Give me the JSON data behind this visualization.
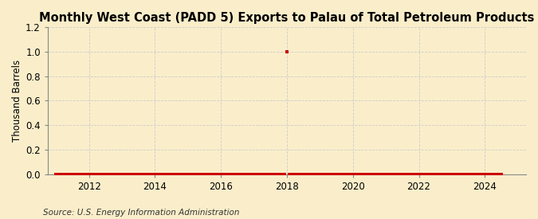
{
  "title": "Monthly West Coast (PADD 5) Exports to Palau of Total Petroleum Products",
  "ylabel": "Thousand Barrels",
  "source": "Source: U.S. Energy Information Administration",
  "background_color": "#faeeca",
  "ylim": [
    0,
    1.2
  ],
  "yticks": [
    0.0,
    0.2,
    0.4,
    0.6,
    0.8,
    1.0,
    1.2
  ],
  "xlim_start": 2010.75,
  "xlim_end": 2025.25,
  "xticks": [
    2012,
    2014,
    2016,
    2018,
    2020,
    2022,
    2024
  ],
  "marker_color": "#cc0000",
  "markersize": 3,
  "data_points": [
    [
      2011.0,
      0.0
    ],
    [
      2011.083,
      0.0
    ],
    [
      2011.167,
      0.0
    ],
    [
      2011.25,
      0.0
    ],
    [
      2011.333,
      0.0
    ],
    [
      2011.417,
      0.0
    ],
    [
      2011.5,
      0.0
    ],
    [
      2011.583,
      0.0
    ],
    [
      2011.667,
      0.0
    ],
    [
      2011.75,
      0.0
    ],
    [
      2011.833,
      0.0
    ],
    [
      2011.917,
      0.0
    ],
    [
      2012.0,
      0.0
    ],
    [
      2012.083,
      0.0
    ],
    [
      2012.167,
      0.0
    ],
    [
      2012.25,
      0.0
    ],
    [
      2012.333,
      0.0
    ],
    [
      2012.417,
      0.0
    ],
    [
      2012.5,
      0.0
    ],
    [
      2012.583,
      0.0
    ],
    [
      2012.667,
      0.0
    ],
    [
      2012.75,
      0.0
    ],
    [
      2012.833,
      0.0
    ],
    [
      2012.917,
      0.0
    ],
    [
      2013.0,
      0.0
    ],
    [
      2013.083,
      0.0
    ],
    [
      2013.167,
      0.0
    ],
    [
      2013.25,
      0.0
    ],
    [
      2013.333,
      0.0
    ],
    [
      2013.417,
      0.0
    ],
    [
      2013.5,
      0.0
    ],
    [
      2013.583,
      0.0
    ],
    [
      2013.667,
      0.0
    ],
    [
      2013.75,
      0.0
    ],
    [
      2013.833,
      0.0
    ],
    [
      2013.917,
      0.0
    ],
    [
      2014.0,
      0.0
    ],
    [
      2014.083,
      0.0
    ],
    [
      2014.167,
      0.0
    ],
    [
      2014.25,
      0.0
    ],
    [
      2014.333,
      0.0
    ],
    [
      2014.417,
      0.0
    ],
    [
      2014.5,
      0.0
    ],
    [
      2014.583,
      0.0
    ],
    [
      2014.667,
      0.0
    ],
    [
      2014.75,
      0.0
    ],
    [
      2014.833,
      0.0
    ],
    [
      2014.917,
      0.0
    ],
    [
      2015.0,
      0.0
    ],
    [
      2015.083,
      0.0
    ],
    [
      2015.167,
      0.0
    ],
    [
      2015.25,
      0.0
    ],
    [
      2015.333,
      0.0
    ],
    [
      2015.417,
      0.0
    ],
    [
      2015.5,
      0.0
    ],
    [
      2015.583,
      0.0
    ],
    [
      2015.667,
      0.0
    ],
    [
      2015.75,
      0.0
    ],
    [
      2015.833,
      0.0
    ],
    [
      2015.917,
      0.0
    ],
    [
      2016.0,
      0.0
    ],
    [
      2016.083,
      0.0
    ],
    [
      2016.167,
      0.0
    ],
    [
      2016.25,
      0.0
    ],
    [
      2016.333,
      0.0
    ],
    [
      2016.417,
      0.0
    ],
    [
      2016.5,
      0.0
    ],
    [
      2016.583,
      0.0
    ],
    [
      2016.667,
      0.0
    ],
    [
      2016.75,
      0.0
    ],
    [
      2016.833,
      0.0
    ],
    [
      2016.917,
      0.0
    ],
    [
      2017.0,
      0.0
    ],
    [
      2017.083,
      0.0
    ],
    [
      2017.167,
      0.0
    ],
    [
      2017.25,
      0.0
    ],
    [
      2017.333,
      0.0
    ],
    [
      2017.417,
      0.0
    ],
    [
      2017.5,
      0.0
    ],
    [
      2017.583,
      0.0
    ],
    [
      2017.667,
      0.0
    ],
    [
      2017.75,
      0.0
    ],
    [
      2017.833,
      0.0
    ],
    [
      2017.917,
      0.0
    ],
    [
      2018.0,
      1.0
    ],
    [
      2018.083,
      0.0
    ],
    [
      2018.167,
      0.0
    ],
    [
      2018.25,
      0.0
    ],
    [
      2018.333,
      0.0
    ],
    [
      2018.417,
      0.0
    ],
    [
      2018.5,
      0.0
    ],
    [
      2018.583,
      0.0
    ],
    [
      2018.667,
      0.0
    ],
    [
      2018.75,
      0.0
    ],
    [
      2018.833,
      0.0
    ],
    [
      2018.917,
      0.0
    ],
    [
      2019.0,
      0.0
    ],
    [
      2019.083,
      0.0
    ],
    [
      2019.167,
      0.0
    ],
    [
      2019.25,
      0.0
    ],
    [
      2019.333,
      0.0
    ],
    [
      2019.417,
      0.0
    ],
    [
      2019.5,
      0.0
    ],
    [
      2019.583,
      0.0
    ],
    [
      2019.667,
      0.0
    ],
    [
      2019.75,
      0.0
    ],
    [
      2019.833,
      0.0
    ],
    [
      2019.917,
      0.0
    ],
    [
      2020.0,
      0.0
    ],
    [
      2020.083,
      0.0
    ],
    [
      2020.167,
      0.0
    ],
    [
      2020.25,
      0.0
    ],
    [
      2020.333,
      0.0
    ],
    [
      2020.417,
      0.0
    ],
    [
      2020.5,
      0.0
    ],
    [
      2020.583,
      0.0
    ],
    [
      2020.667,
      0.0
    ],
    [
      2020.75,
      0.0
    ],
    [
      2020.833,
      0.0
    ],
    [
      2020.917,
      0.0
    ],
    [
      2021.0,
      0.0
    ],
    [
      2021.083,
      0.0
    ],
    [
      2021.167,
      0.0
    ],
    [
      2021.25,
      0.0
    ],
    [
      2021.333,
      0.0
    ],
    [
      2021.417,
      0.0
    ],
    [
      2021.5,
      0.0
    ],
    [
      2021.583,
      0.0
    ],
    [
      2021.667,
      0.0
    ],
    [
      2021.75,
      0.0
    ],
    [
      2021.833,
      0.0
    ],
    [
      2021.917,
      0.0
    ],
    [
      2022.0,
      0.0
    ],
    [
      2022.083,
      0.0
    ],
    [
      2022.167,
      0.0
    ],
    [
      2022.25,
      0.0
    ],
    [
      2022.333,
      0.0
    ],
    [
      2022.417,
      0.0
    ],
    [
      2022.5,
      0.0
    ],
    [
      2022.583,
      0.0
    ],
    [
      2022.667,
      0.0
    ],
    [
      2022.75,
      0.0
    ],
    [
      2022.833,
      0.0
    ],
    [
      2022.917,
      0.0
    ],
    [
      2023.0,
      0.0
    ],
    [
      2023.083,
      0.0
    ],
    [
      2023.167,
      0.0
    ],
    [
      2023.25,
      0.0
    ],
    [
      2023.333,
      0.0
    ],
    [
      2023.417,
      0.0
    ],
    [
      2023.5,
      0.0
    ],
    [
      2023.583,
      0.0
    ],
    [
      2023.667,
      0.0
    ],
    [
      2023.75,
      0.0
    ],
    [
      2023.833,
      0.0
    ],
    [
      2023.917,
      0.0
    ],
    [
      2024.0,
      0.0
    ],
    [
      2024.083,
      0.0
    ],
    [
      2024.167,
      0.0
    ],
    [
      2024.25,
      0.0
    ],
    [
      2024.333,
      0.0
    ],
    [
      2024.417,
      0.0
    ],
    [
      2024.5,
      0.0
    ]
  ],
  "title_fontsize": 10.5,
  "axis_fontsize": 8.5,
  "source_fontsize": 7.5,
  "grid_color": "#cccccc",
  "grid_linestyle": "--",
  "grid_linewidth": 0.6
}
